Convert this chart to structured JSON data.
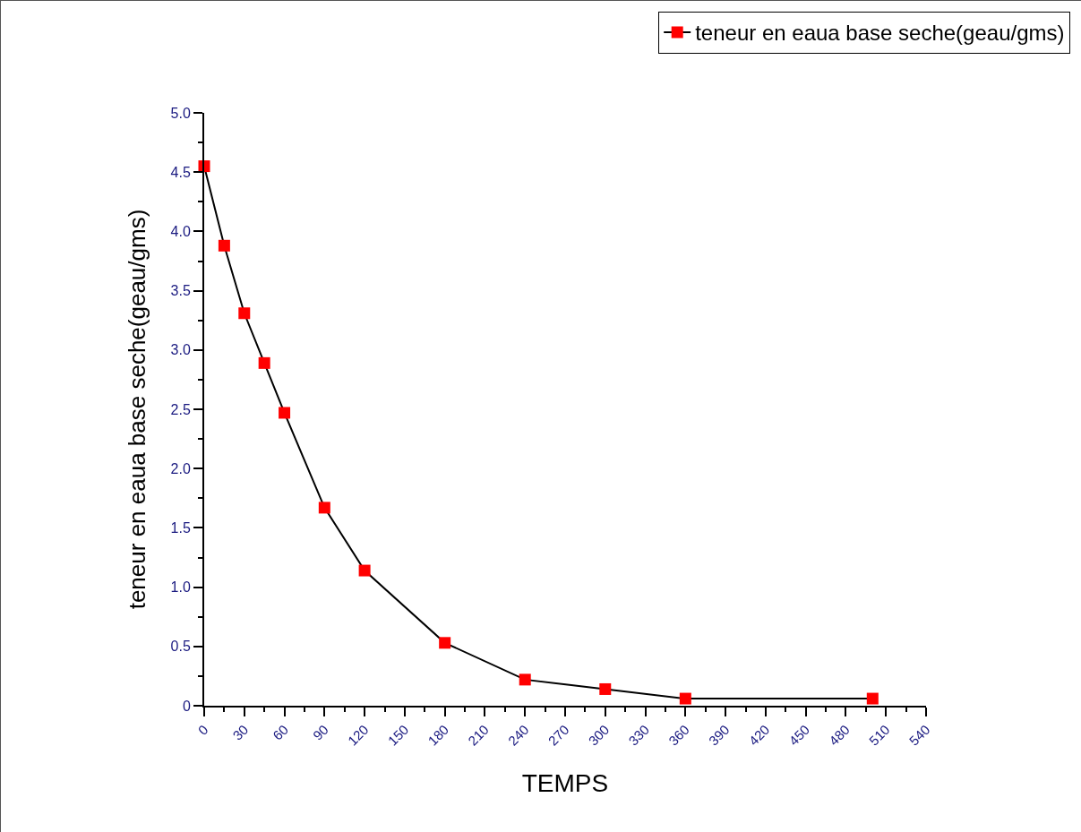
{
  "chart_data": {
    "type": "line",
    "xlabel": "TEMPS",
    "ylabel": "teneur en eaua base seche(geau/gms)",
    "series": [
      {
        "name": "teneur en eaua base seche(geau/gms)",
        "color": "#ff0000",
        "x": [
          0,
          15,
          30,
          45,
          60,
          90,
          120,
          180,
          240,
          300,
          360,
          500
        ],
        "values": [
          4.55,
          3.88,
          3.31,
          2.89,
          2.47,
          1.67,
          1.14,
          0.53,
          0.22,
          0.14,
          0.06,
          0.06
        ]
      }
    ],
    "xlim": [
      0,
      540
    ],
    "xticks": [
      0,
      30,
      60,
      90,
      120,
      150,
      180,
      210,
      240,
      270,
      300,
      330,
      360,
      390,
      420,
      450,
      480,
      510,
      540
    ],
    "ylim": [
      0,
      5
    ],
    "yticks": [
      0,
      {
        "value": 0.5,
        "label": "0.5"
      },
      {
        "value": 1,
        "label": "1.0"
      },
      {
        "value": 1.5,
        "label": "1.5"
      },
      {
        "value": 2,
        "label": "2.0"
      },
      {
        "value": 2.5,
        "label": "2.5"
      },
      {
        "value": 3,
        "label": "3.0"
      },
      {
        "value": 3.5,
        "label": "3.5"
      },
      {
        "value": 4,
        "label": "4.0"
      },
      {
        "value": 4.5,
        "label": "4.5"
      },
      {
        "value": 5,
        "label": "5.0"
      }
    ],
    "grid": false,
    "legend": "top right",
    "marker": "square",
    "line_style": "solid"
  }
}
